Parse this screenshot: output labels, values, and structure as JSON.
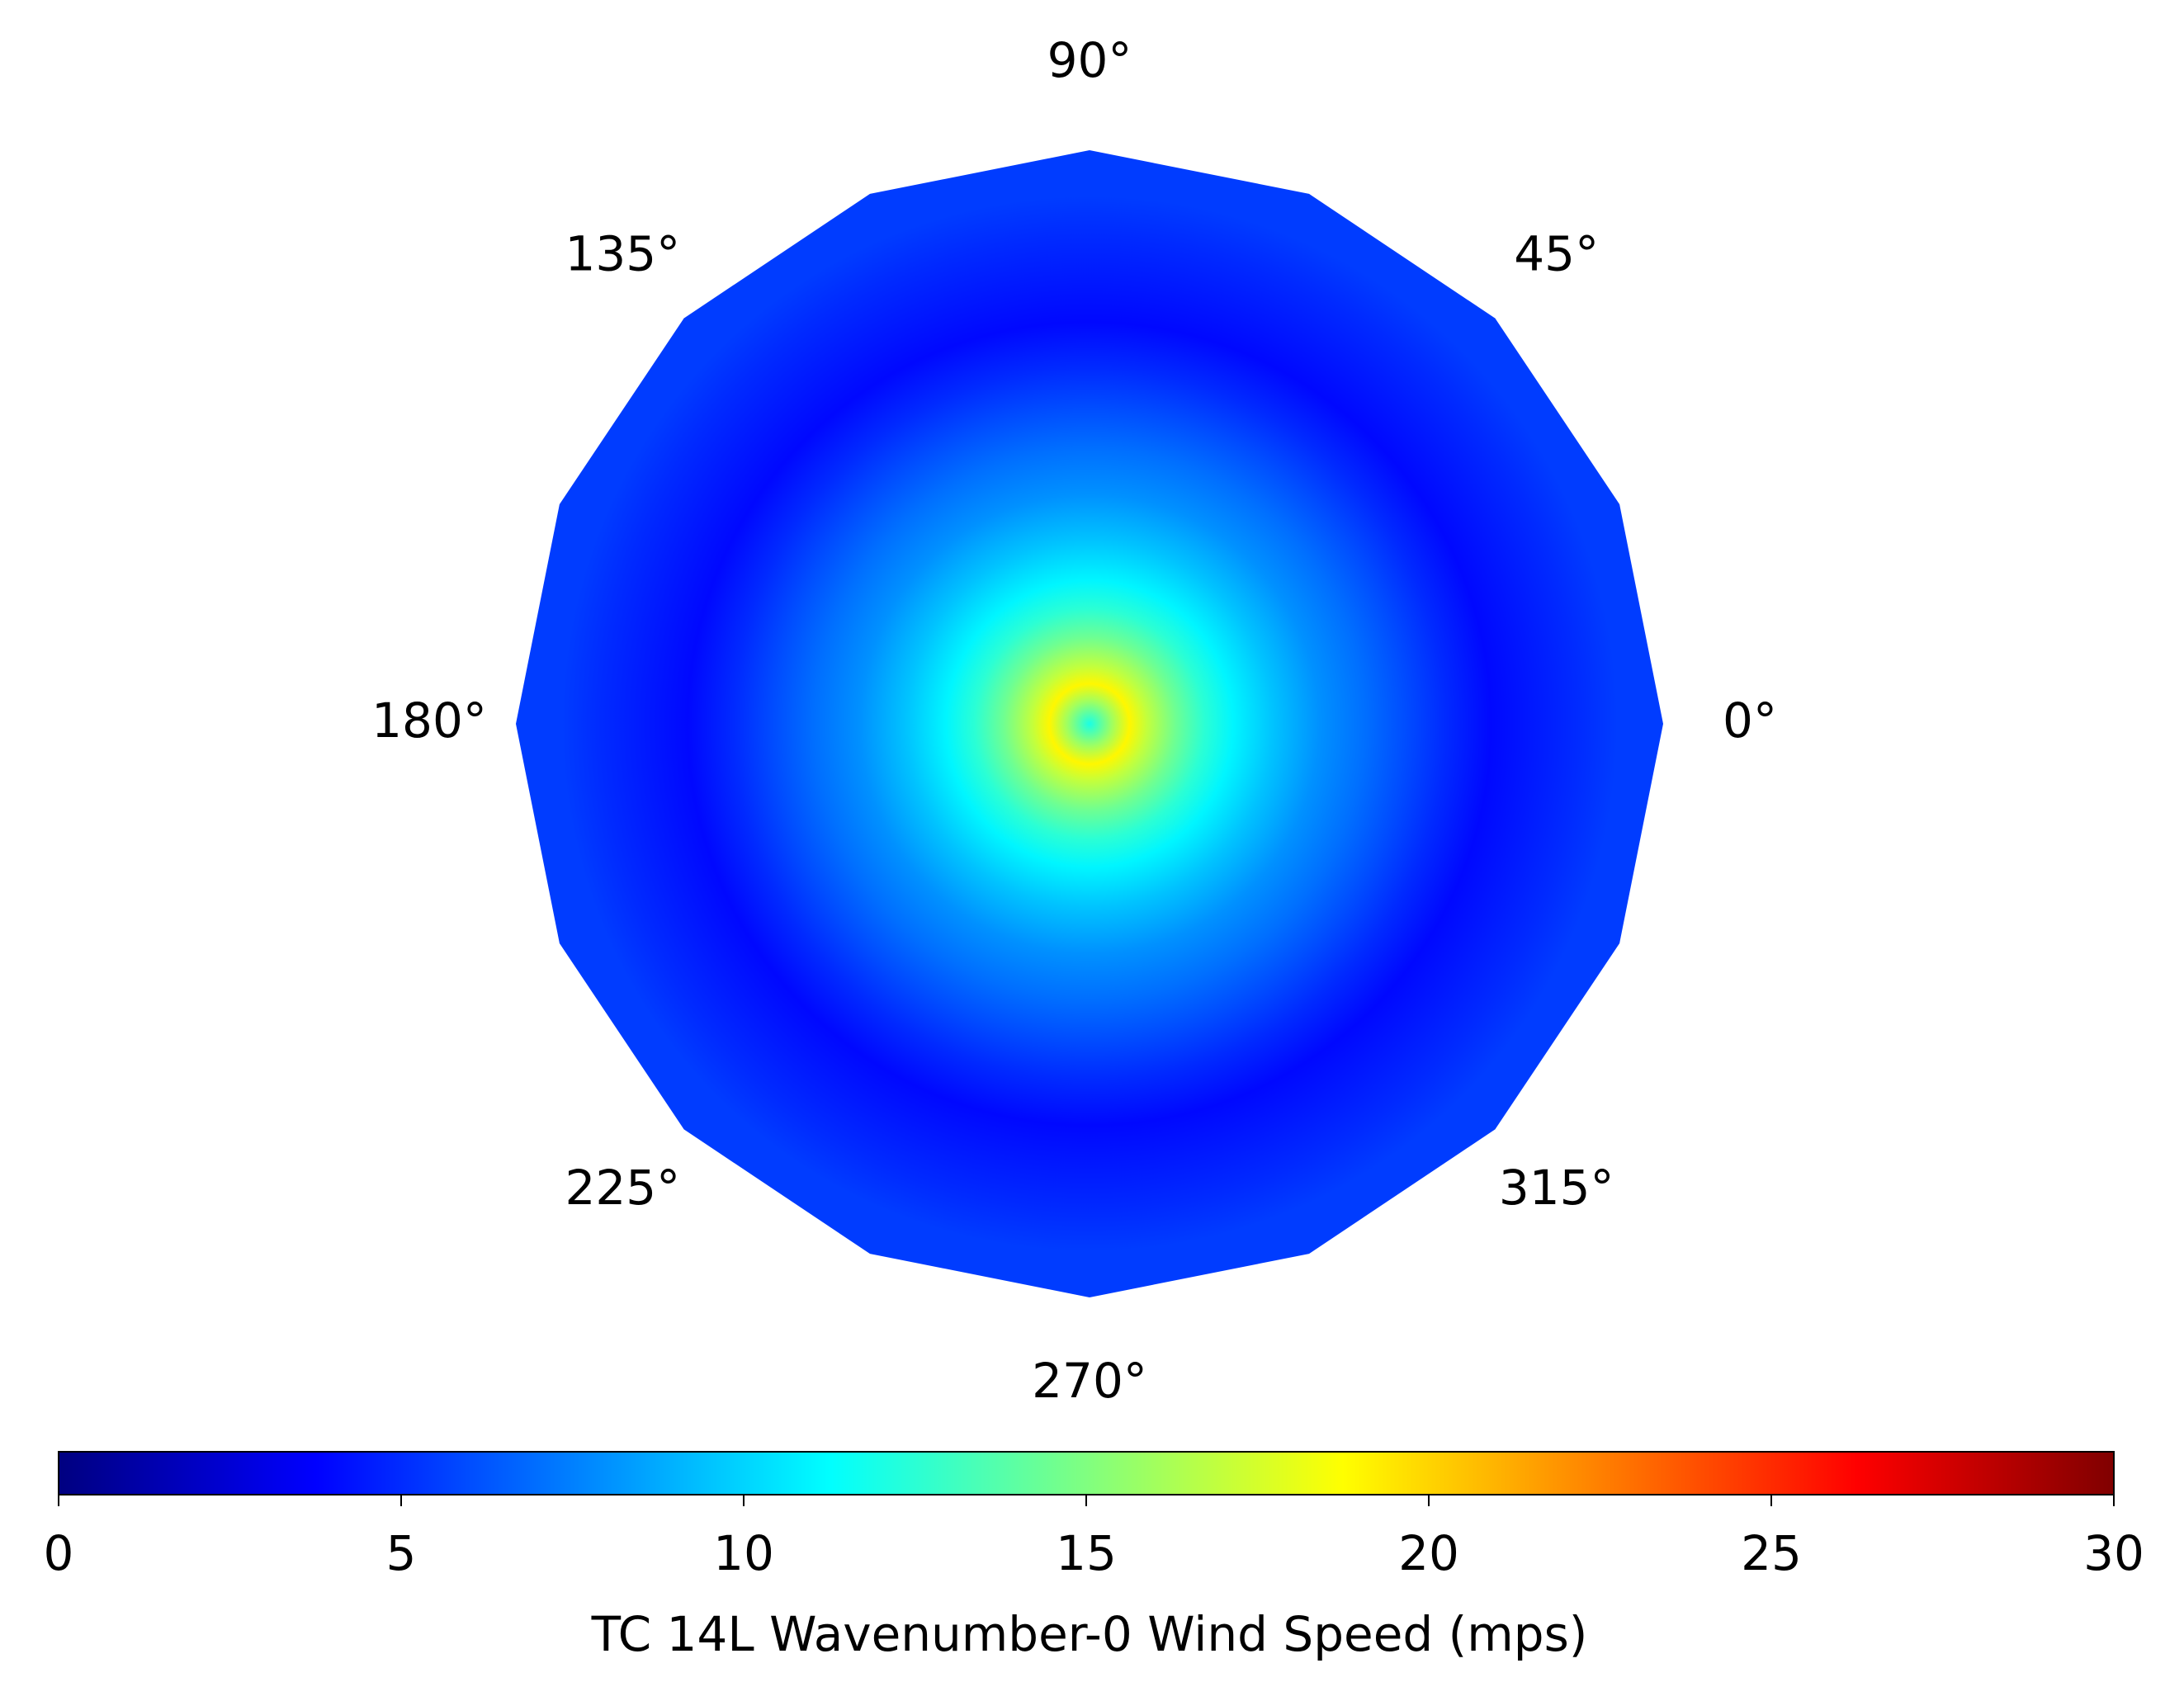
{
  "chart_data": {
    "type": "polar-radial-profile",
    "radii": [
      0,
      0.04,
      0.07,
      0.1,
      0.15,
      0.2,
      0.25,
      0.32,
      0.4,
      0.48,
      0.55,
      0.62,
      0.7,
      0.78,
      0.85,
      0.92,
      1
    ],
    "values": [
      12,
      16,
      19,
      17,
      14.5,
      12.5,
      11,
      9.5,
      8,
      7,
      6,
      5,
      4,
      4.5,
      5,
      5.5,
      5.5
    ],
    "n_sides": 16,
    "theta_ticks": [
      {
        "value": 0,
        "label": "0°"
      },
      {
        "value": 45,
        "label": "45°"
      },
      {
        "value": 90,
        "label": "90°"
      },
      {
        "value": 135,
        "label": "135°"
      },
      {
        "value": 180,
        "label": "180°"
      },
      {
        "value": 225,
        "label": "225°"
      },
      {
        "value": 270,
        "label": "270°"
      },
      {
        "value": 315,
        "label": "315°"
      }
    ],
    "colormap": "jet",
    "colorbar": {
      "label": "TC 14L Wavenumber-0 Wind Speed (mps)",
      "lim": [
        0,
        30
      ],
      "ticks": [
        0,
        5,
        10,
        15,
        20,
        25,
        30
      ]
    }
  }
}
